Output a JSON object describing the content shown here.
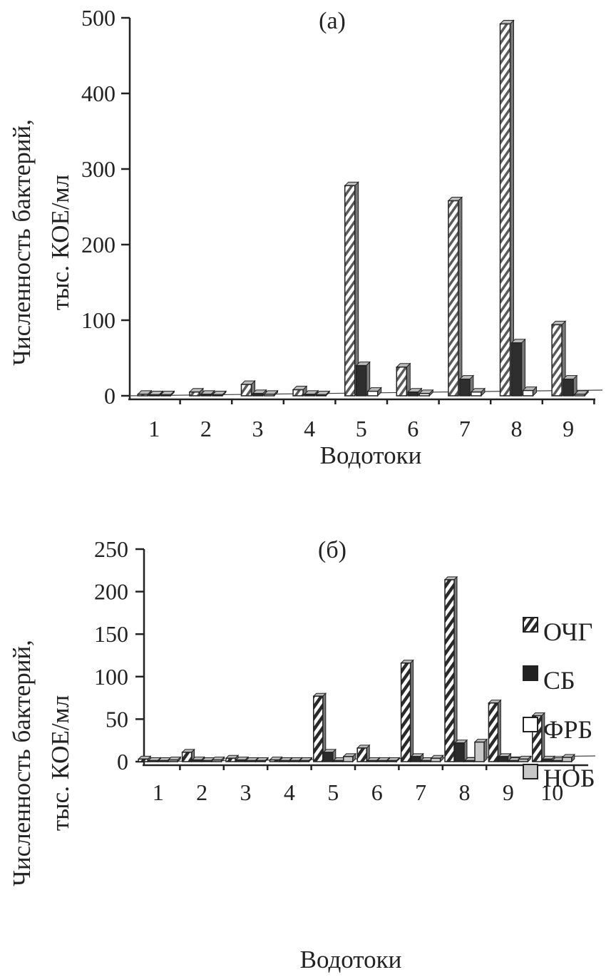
{
  "chart_data": [
    {
      "type": "bar",
      "title": "(а)",
      "xlabel": "Водотоки",
      "ylabel_lines": [
        "Численность бактерий,",
        "тыс. КОЕ/мл"
      ],
      "categories": [
        "1",
        "2",
        "3",
        "4",
        "5",
        "6",
        "7",
        "8",
        "9"
      ],
      "yticks": [
        "0",
        "100",
        "200",
        "300",
        "400",
        "500"
      ],
      "ylim": [
        0,
        500
      ],
      "grid": false,
      "legend": "none",
      "series": [
        {
          "values": [
            2,
            5,
            15,
            8,
            278,
            38,
            258,
            492,
            94
          ]
        },
        {
          "values": [
            1,
            2,
            3,
            2,
            40,
            5,
            22,
            70,
            22
          ]
        },
        {
          "values": [
            1,
            1,
            2,
            1,
            6,
            3,
            5,
            7,
            2
          ]
        }
      ]
    },
    {
      "type": "bar",
      "title": "(б)",
      "xlabel": "Водотоки",
      "ylabel_lines": [
        "Численность бактерий,",
        "тыс. КОЕ/мл"
      ],
      "categories": [
        "1",
        "2",
        "3",
        "4",
        "5",
        "6",
        "7",
        "8",
        "9",
        "10"
      ],
      "yticks": [
        "0",
        "50",
        "100",
        "150",
        "200",
        "250"
      ],
      "ylim": [
        0,
        250
      ],
      "grid": false,
      "legend": "right",
      "series": [
        {
          "name": "ОЧГ",
          "values": [
            3,
            11,
            4,
            2,
            77,
            16,
            116,
            214,
            69,
            54
          ]
        },
        {
          "name": "СБ",
          "values": [
            1,
            2,
            2,
            1,
            11,
            1,
            6,
            22,
            6,
            3
          ]
        },
        {
          "name": "ФРБ",
          "values": [
            1,
            1,
            1,
            1,
            1,
            1,
            1,
            1,
            1,
            1
          ]
        },
        {
          "name": "НОБ",
          "values": [
            2,
            2,
            1,
            1,
            6,
            1,
            4,
            23,
            3,
            5
          ]
        }
      ]
    }
  ]
}
